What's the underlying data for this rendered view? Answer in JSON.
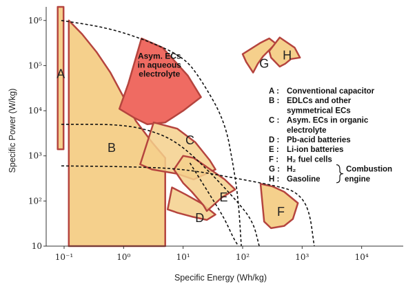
{
  "chart_data": {
    "type": "ragone",
    "xlabel": "Specific Energy (Wh/kg)",
    "ylabel": "Specific Power (W/kg)",
    "x_scale": "log",
    "y_scale": "log",
    "xlim": [
      0.05,
      50000
    ],
    "ylim": [
      10,
      2000000
    ],
    "x_ticks": [
      {
        "value": 0.1,
        "label": "10⁻¹"
      },
      {
        "value": 1,
        "label": "10⁰"
      },
      {
        "value": 10,
        "label": "10¹"
      },
      {
        "value": 100,
        "label": "10²"
      },
      {
        "value": 1000,
        "label": "10³"
      },
      {
        "value": 10000,
        "label": "10⁴"
      }
    ],
    "y_ticks": [
      {
        "value": 10,
        "label": "10"
      },
      {
        "value": 100,
        "label": "10²"
      },
      {
        "value": 1000,
        "label": "10³"
      },
      {
        "value": 10000,
        "label": "10⁴"
      },
      {
        "value": 100000,
        "label": "10⁵"
      },
      {
        "value": 1000000,
        "label": "10⁶"
      }
    ],
    "regions": [
      {
        "id": "B",
        "label": "B",
        "fill": "#f5d08c",
        "stroke": "#b5443e",
        "polygon": [
          [
            0.12,
            10
          ],
          [
            0.12,
            1000000
          ],
          [
            0.2,
            500000
          ],
          [
            0.35,
            200000
          ],
          [
            0.6,
            70000
          ],
          [
            1,
            20000
          ],
          [
            1.6,
            6000
          ],
          [
            3,
            2000
          ],
          [
            5,
            900
          ],
          [
            5,
            10
          ]
        ],
        "label_at": [
          0.63,
          1500
        ]
      },
      {
        "id": "A",
        "label": "A",
        "fill": "#f5d08c",
        "stroke": "#b5443e",
        "polygon": [
          [
            0.078,
            1400
          ],
          [
            0.098,
            1400
          ],
          [
            0.098,
            2000000
          ],
          [
            0.078,
            2000000
          ]
        ],
        "label_at": [
          0.088,
          65000
        ]
      },
      {
        "id": "AsymAq",
        "label": "Asym. ECs in aqueous electrolyte",
        "fill": "#ef6b62",
        "stroke": "#b5443e",
        "polygon": [
          [
            2,
            400000
          ],
          [
            4.5,
            250000
          ],
          [
            12,
            60000
          ],
          [
            20,
            20000
          ],
          [
            10,
            10000
          ],
          [
            5,
            5500
          ],
          [
            2.5,
            5000
          ],
          [
            1.5,
            7000
          ],
          [
            0.85,
            11000
          ],
          [
            1.2,
            40000
          ]
        ],
        "label_at": [
          4,
          100000
        ]
      },
      {
        "id": "C",
        "label": "C",
        "fill": "#f5d08c",
        "stroke": "#b5443e",
        "polygon": [
          [
            3.2,
            5500
          ],
          [
            8,
            4000
          ],
          [
            16,
            2000
          ],
          [
            28,
            800
          ],
          [
            35,
            500
          ],
          [
            15,
            300
          ],
          [
            8,
            400
          ],
          [
            3,
            500
          ],
          [
            1.9,
            650
          ]
        ],
        "label_at": [
          13,
          2200
        ]
      },
      {
        "id": "D",
        "label": "D",
        "fill": "#f5d08c",
        "stroke": "#b5443e",
        "polygon": [
          [
            6.5,
            200
          ],
          [
            11,
            140
          ],
          [
            20,
            90
          ],
          [
            35,
            50
          ],
          [
            25,
            38
          ],
          [
            14,
            45
          ],
          [
            8,
            55
          ],
          [
            5.5,
            65
          ]
        ],
        "label_at": [
          19,
          42
        ]
      },
      {
        "id": "E",
        "label": "E",
        "fill": "#f5d08c",
        "stroke": "#b5443e",
        "polygon": [
          [
            10,
            1000
          ],
          [
            15,
            900
          ],
          [
            30,
            480
          ],
          [
            50,
            300
          ],
          [
            75,
            180
          ],
          [
            45,
            120
          ],
          [
            25,
            60
          ],
          [
            22,
            80
          ],
          [
            14,
            160
          ],
          [
            10,
            250
          ],
          [
            7,
            500
          ]
        ],
        "label_at": [
          48,
          120
        ]
      },
      {
        "id": "F",
        "label": "F",
        "fill": "#f5d08c",
        "stroke": "#b5443e",
        "polygon": [
          [
            200,
            240
          ],
          [
            320,
            210
          ],
          [
            500,
            160
          ],
          [
            850,
            90
          ],
          [
            700,
            40
          ],
          [
            500,
            28
          ],
          [
            300,
            25
          ],
          [
            230,
            35
          ]
        ],
        "label_at": [
          440,
          58
        ]
      },
      {
        "id": "G",
        "label": "G",
        "fill": "#f5d08c",
        "stroke": "#b5443e",
        "polygon": [
          [
            100,
            180000
          ],
          [
            200,
            320000
          ],
          [
            280,
            400000
          ],
          [
            360,
            310000
          ],
          [
            220,
            160000
          ],
          [
            180,
            110000
          ],
          [
            150,
            70000
          ],
          [
            115,
            120000
          ]
        ],
        "label_at": [
          230,
          110000
        ]
      },
      {
        "id": "H",
        "label": "H",
        "fill": "#f5d08c",
        "stroke": "#b5443e",
        "polygon": [
          [
            280,
            210000
          ],
          [
            420,
            420000
          ],
          [
            750,
            250000
          ],
          [
            920,
            150000
          ],
          [
            650,
            140000
          ],
          [
            520,
            110000
          ],
          [
            420,
            95000
          ],
          [
            300,
            150000
          ]
        ],
        "label_at": [
          560,
          170000
        ]
      }
    ],
    "time_constant_lines": [
      [
        [
          0.09,
          1000000
        ],
        [
          0.5,
          700000
        ],
        [
          2,
          400000
        ],
        [
          10,
          160000
        ],
        [
          20,
          50000
        ],
        [
          50,
          6000
        ],
        [
          70,
          600
        ],
        [
          85,
          100
        ],
        [
          95,
          10
        ]
      ],
      [
        [
          0.09,
          5000
        ],
        [
          1,
          5000
        ],
        [
          4,
          3200
        ],
        [
          10,
          1600
        ],
        [
          30,
          400
        ],
        [
          80,
          100
        ],
        [
          150,
          35
        ],
        [
          190,
          10
        ]
      ],
      [
        [
          0.09,
          600
        ],
        [
          1,
          580
        ],
        [
          10,
          520
        ],
        [
          100,
          300
        ],
        [
          400,
          210
        ],
        [
          800,
          160
        ],
        [
          1300,
          70
        ],
        [
          1600,
          10
        ]
      ],
      [
        [
          13,
          700
        ],
        [
          18,
          350
        ],
        [
          30,
          120
        ],
        [
          50,
          40
        ],
        [
          70,
          15
        ],
        [
          85,
          10
        ]
      ]
    ],
    "legend": [
      {
        "key": "A",
        "text": "Conventional capacitor"
      },
      {
        "key": "B",
        "text": "EDLCs and other symmetrical ECs"
      },
      {
        "key": "C",
        "text": "Asym. ECs in organic electrolyte"
      },
      {
        "key": "D",
        "text": "Pb-acid batteries"
      },
      {
        "key": "E",
        "text": "Li-ion batteries"
      },
      {
        "key": "F",
        "text": "H₂ fuel cells"
      },
      {
        "key": "G",
        "text": "H₂"
      },
      {
        "key": "H",
        "text": "Gasoline"
      }
    ],
    "legend_group_label": "Combustion engine",
    "legend_position": "right",
    "grid": false
  }
}
